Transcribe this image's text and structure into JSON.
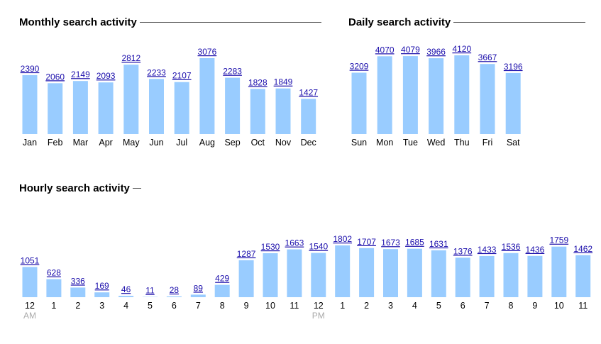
{
  "chart_data": [
    {
      "type": "bar",
      "title": "Monthly search activity",
      "categories": [
        "Jan",
        "Feb",
        "Mar",
        "Apr",
        "May",
        "Jun",
        "Jul",
        "Aug",
        "Sep",
        "Oct",
        "Nov",
        "Dec"
      ],
      "values": [
        2390,
        2060,
        2149,
        2093,
        2812,
        2233,
        2107,
        3076,
        2283,
        1828,
        1849,
        1427
      ],
      "xlabel": "",
      "ylabel": "",
      "grid": false
    },
    {
      "type": "bar",
      "title": "Daily search activity",
      "categories": [
        "Sun",
        "Mon",
        "Tue",
        "Wed",
        "Thu",
        "Fri",
        "Sat"
      ],
      "values": [
        3209,
        4070,
        4079,
        3966,
        4120,
        3667,
        3196
      ],
      "xlabel": "",
      "ylabel": "",
      "grid": false
    },
    {
      "type": "bar",
      "title": "Hourly search activity",
      "categories": [
        "12",
        "1",
        "2",
        "3",
        "4",
        "5",
        "6",
        "7",
        "8",
        "9",
        "10",
        "11",
        "12",
        "1",
        "2",
        "3",
        "4",
        "5",
        "6",
        "7",
        "8",
        "9",
        "10",
        "11"
      ],
      "sublabels": {
        "0": "AM",
        "12": "PM"
      },
      "values": [
        1051,
        628,
        336,
        169,
        46,
        11,
        28,
        89,
        429,
        1287,
        1530,
        1663,
        1540,
        1802,
        1707,
        1673,
        1685,
        1631,
        1376,
        1433,
        1536,
        1436,
        1759,
        1462
      ],
      "xlabel": "",
      "ylabel": "",
      "grid": false
    }
  ],
  "colors": {
    "bar": "#99ccff",
    "value_link": "#1a0dab",
    "sublabel": "#aaaaaa",
    "rule": "#555555"
  }
}
